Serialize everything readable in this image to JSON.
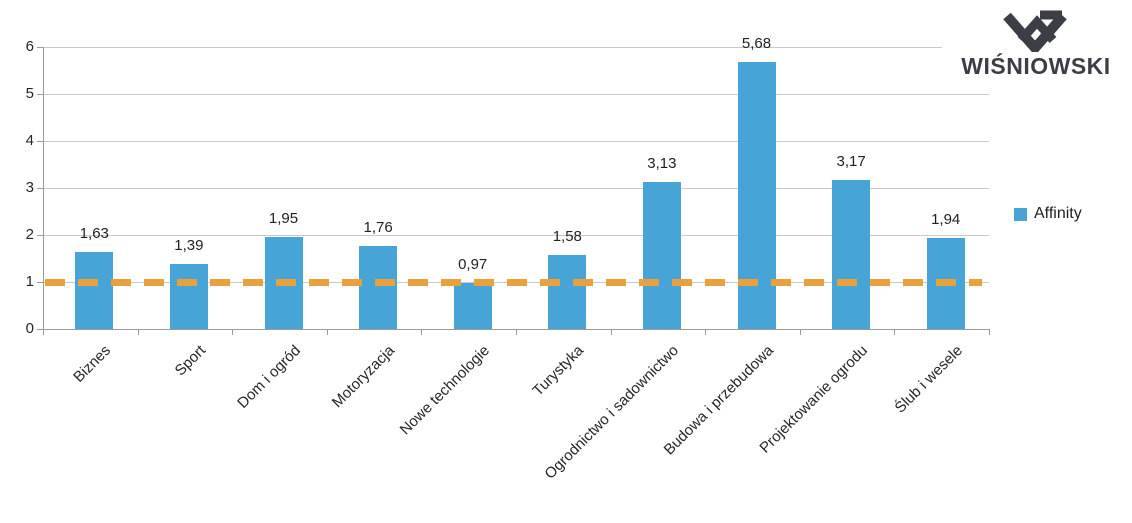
{
  "logo": {
    "brand": "WIŚNIOWSKI",
    "icon": "wisniowski-w-monogram-icon",
    "color": "#3B3E45"
  },
  "chart_data": {
    "type": "bar",
    "title": "",
    "xlabel": "",
    "ylabel": "",
    "categories": [
      "Biznes",
      "Sport",
      "Dom i ogród",
      "Motoryzacja",
      "Nowe technologie",
      "Turystyka",
      "Ogrodnictwo i sadownictwo",
      "Budowa i przebudowa",
      "Projektowanie ogrodu",
      "Ślub i wesele"
    ],
    "series": [
      {
        "name": "Affinity",
        "color": "#47A4D6",
        "values": [
          1.63,
          1.39,
          1.95,
          1.76,
          0.97,
          1.58,
          3.13,
          5.68,
          3.17,
          1.94
        ]
      }
    ],
    "value_labels": [
      "1,63",
      "1,39",
      "1,95",
      "1,76",
      "0,97",
      "1,58",
      "3,13",
      "5,68",
      "3,17",
      "1,94"
    ],
    "decimal_separator": ",",
    "y_ticks": [
      0,
      1,
      2,
      3,
      4,
      5,
      6
    ],
    "ylim": [
      0,
      6
    ],
    "grid": true,
    "legend_position": "right",
    "category_label_rotation_deg": -45,
    "reference_line": {
      "value": 1,
      "style": "dashed",
      "color": "#E8A13C"
    },
    "colors": {
      "bar": "#47A4D6",
      "gridline": "#C9C9C9",
      "axis": "#9B9B9B",
      "text": "#262626"
    }
  }
}
